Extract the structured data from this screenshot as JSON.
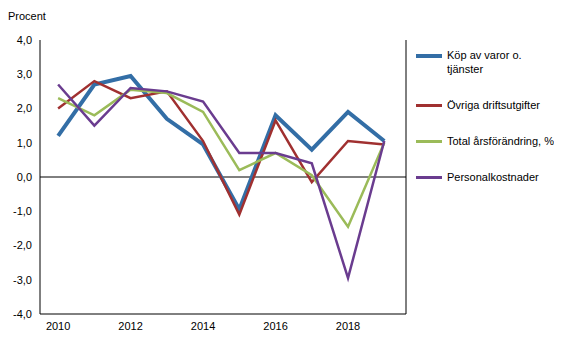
{
  "chart_data": {
    "type": "line",
    "y_label": "Procent",
    "x": [
      2010,
      2011,
      2012,
      2013,
      2014,
      2015,
      2016,
      2017,
      2018,
      2019
    ],
    "xlim": [
      2009.5,
      2019.6
    ],
    "xticks": [
      2010,
      2012,
      2014,
      2016,
      2018
    ],
    "ylim": [
      -4,
      4
    ],
    "yticks": [
      {
        "value": -4,
        "label": "-4,0"
      },
      {
        "value": -3,
        "label": "-3,0"
      },
      {
        "value": -2,
        "label": "-2,0"
      },
      {
        "value": -1,
        "label": "-1,0"
      },
      {
        "value": 0,
        "label": "0,0"
      },
      {
        "value": 1,
        "label": "1,0"
      },
      {
        "value": 2,
        "label": "2,0"
      },
      {
        "value": 3,
        "label": "3,0"
      },
      {
        "value": 4,
        "label": "4,0"
      }
    ],
    "grid": false,
    "legend": "right",
    "series": [
      {
        "name": "Köp av varor o. tjänster",
        "color": "#336ea6",
        "values": [
          1.2,
          2.7,
          2.95,
          1.7,
          0.95,
          -0.95,
          1.8,
          0.8,
          1.9,
          1.05
        ]
      },
      {
        "name": "Övriga driftsutgifter",
        "color": "#a03030",
        "values": [
          2.0,
          2.8,
          2.3,
          2.5,
          1.05,
          -1.1,
          1.65,
          -0.15,
          1.05,
          0.95
        ]
      },
      {
        "name": "Total årsförändring, %",
        "color": "#9bbb59",
        "values": [
          2.3,
          1.8,
          2.55,
          2.45,
          1.9,
          0.2,
          0.7,
          0.05,
          -1.45,
          1.0
        ]
      },
      {
        "name": "Personalkostnader",
        "color": "#6a3c8f",
        "values": [
          2.7,
          1.5,
          2.6,
          2.5,
          2.2,
          0.7,
          0.7,
          0.4,
          -2.95,
          1.05
        ]
      }
    ]
  }
}
